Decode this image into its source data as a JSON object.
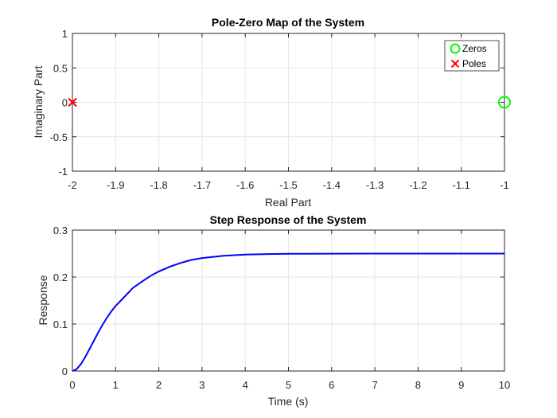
{
  "colors": {
    "zero_marker": "#00ff00",
    "pole_marker": "#ff0000",
    "response_line": "#0000ff",
    "grid": "#e6e6e6",
    "axis": "#262626"
  },
  "chart_data": [
    {
      "type": "scatter",
      "title": "Pole-Zero Map of the System",
      "xlabel": "Real Part",
      "ylabel": "Imaginary Part",
      "xlim": [
        -2,
        -1
      ],
      "ylim": [
        -1,
        1
      ],
      "grid": true,
      "legend_position": "top-right",
      "x_ticks": [
        "-2",
        "-1.9",
        "-1.8",
        "-1.7",
        "-1.6",
        "-1.5",
        "-1.4",
        "-1.3",
        "-1.2",
        "-1.1",
        "-1"
      ],
      "y_ticks": [
        "-1",
        "-0.5",
        "0",
        "0.5",
        "1"
      ],
      "series": [
        {
          "name": "Zeros",
          "marker": "circle",
          "points": [
            {
              "x": -1,
              "y": 0
            }
          ]
        },
        {
          "name": "Poles",
          "marker": "x",
          "points": [
            {
              "x": -2,
              "y": 0
            }
          ]
        }
      ]
    },
    {
      "type": "line",
      "title": "Step Response of the System",
      "xlabel": "Time (s)",
      "ylabel": "Response",
      "xlim": [
        0,
        10
      ],
      "ylim": [
        0,
        0.3
      ],
      "grid": true,
      "x_ticks": [
        "0",
        "1",
        "2",
        "3",
        "4",
        "5",
        "6",
        "7",
        "8",
        "9",
        "10"
      ],
      "y_ticks": [
        "0",
        "0.1",
        "0.2",
        "0.3"
      ],
      "series": [
        {
          "x": [
            0,
            0.1,
            0.2,
            0.3,
            0.4,
            0.5,
            0.6,
            0.7,
            0.8,
            0.9,
            1.0,
            1.2,
            1.4,
            1.6,
            1.8,
            2.0,
            2.25,
            2.5,
            2.75,
            3.0,
            3.5,
            4.0,
            4.5,
            5.0,
            6.0,
            7.0,
            8.0,
            9.0,
            10.0
          ],
          "y": [
            0,
            0.0043,
            0.0153,
            0.0304,
            0.0474,
            0.0652,
            0.0825,
            0.0988,
            0.1136,
            0.1269,
            0.1385,
            0.1577,
            0.177,
            0.1897,
            0.202,
            0.212,
            0.2218,
            0.23,
            0.2364,
            0.2405,
            0.2454,
            0.248,
            0.249,
            0.2495,
            0.2499,
            0.25,
            0.25,
            0.25,
            0.25
          ]
        }
      ]
    }
  ]
}
